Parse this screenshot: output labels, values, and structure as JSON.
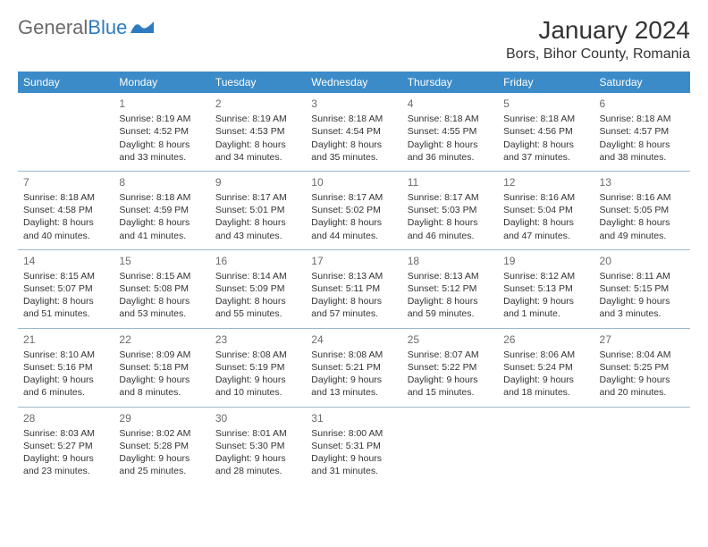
{
  "brand": {
    "name_part1": "General",
    "name_part2": "Blue",
    "color_gray": "#6b6b6b",
    "color_blue": "#2d7cc1"
  },
  "header": {
    "title": "January 2024",
    "location": "Bors, Bihor County, Romania"
  },
  "styling": {
    "header_bg": "#3b8bc9",
    "header_text": "#ffffff",
    "row_border": "#9cb8cc",
    "body_text": "#333333",
    "daynum_color": "#6b6b6b",
    "font_family": "Arial",
    "body_fontsize": 10.5,
    "header_fontsize": 12,
    "title_fontsize": 28,
    "location_fontsize": 16
  },
  "weekdays": [
    "Sunday",
    "Monday",
    "Tuesday",
    "Wednesday",
    "Thursday",
    "Friday",
    "Saturday"
  ],
  "start_offset": 1,
  "days": [
    {
      "n": 1,
      "sunrise": "8:19 AM",
      "sunset": "4:52 PM",
      "daylight": "8 hours and 33 minutes."
    },
    {
      "n": 2,
      "sunrise": "8:19 AM",
      "sunset": "4:53 PM",
      "daylight": "8 hours and 34 minutes."
    },
    {
      "n": 3,
      "sunrise": "8:18 AM",
      "sunset": "4:54 PM",
      "daylight": "8 hours and 35 minutes."
    },
    {
      "n": 4,
      "sunrise": "8:18 AM",
      "sunset": "4:55 PM",
      "daylight": "8 hours and 36 minutes."
    },
    {
      "n": 5,
      "sunrise": "8:18 AM",
      "sunset": "4:56 PM",
      "daylight": "8 hours and 37 minutes."
    },
    {
      "n": 6,
      "sunrise": "8:18 AM",
      "sunset": "4:57 PM",
      "daylight": "8 hours and 38 minutes."
    },
    {
      "n": 7,
      "sunrise": "8:18 AM",
      "sunset": "4:58 PM",
      "daylight": "8 hours and 40 minutes."
    },
    {
      "n": 8,
      "sunrise": "8:18 AM",
      "sunset": "4:59 PM",
      "daylight": "8 hours and 41 minutes."
    },
    {
      "n": 9,
      "sunrise": "8:17 AM",
      "sunset": "5:01 PM",
      "daylight": "8 hours and 43 minutes."
    },
    {
      "n": 10,
      "sunrise": "8:17 AM",
      "sunset": "5:02 PM",
      "daylight": "8 hours and 44 minutes."
    },
    {
      "n": 11,
      "sunrise": "8:17 AM",
      "sunset": "5:03 PM",
      "daylight": "8 hours and 46 minutes."
    },
    {
      "n": 12,
      "sunrise": "8:16 AM",
      "sunset": "5:04 PM",
      "daylight": "8 hours and 47 minutes."
    },
    {
      "n": 13,
      "sunrise": "8:16 AM",
      "sunset": "5:05 PM",
      "daylight": "8 hours and 49 minutes."
    },
    {
      "n": 14,
      "sunrise": "8:15 AM",
      "sunset": "5:07 PM",
      "daylight": "8 hours and 51 minutes."
    },
    {
      "n": 15,
      "sunrise": "8:15 AM",
      "sunset": "5:08 PM",
      "daylight": "8 hours and 53 minutes."
    },
    {
      "n": 16,
      "sunrise": "8:14 AM",
      "sunset": "5:09 PM",
      "daylight": "8 hours and 55 minutes."
    },
    {
      "n": 17,
      "sunrise": "8:13 AM",
      "sunset": "5:11 PM",
      "daylight": "8 hours and 57 minutes."
    },
    {
      "n": 18,
      "sunrise": "8:13 AM",
      "sunset": "5:12 PM",
      "daylight": "8 hours and 59 minutes."
    },
    {
      "n": 19,
      "sunrise": "8:12 AM",
      "sunset": "5:13 PM",
      "daylight": "9 hours and 1 minute."
    },
    {
      "n": 20,
      "sunrise": "8:11 AM",
      "sunset": "5:15 PM",
      "daylight": "9 hours and 3 minutes."
    },
    {
      "n": 21,
      "sunrise": "8:10 AM",
      "sunset": "5:16 PM",
      "daylight": "9 hours and 6 minutes."
    },
    {
      "n": 22,
      "sunrise": "8:09 AM",
      "sunset": "5:18 PM",
      "daylight": "9 hours and 8 minutes."
    },
    {
      "n": 23,
      "sunrise": "8:08 AM",
      "sunset": "5:19 PM",
      "daylight": "9 hours and 10 minutes."
    },
    {
      "n": 24,
      "sunrise": "8:08 AM",
      "sunset": "5:21 PM",
      "daylight": "9 hours and 13 minutes."
    },
    {
      "n": 25,
      "sunrise": "8:07 AM",
      "sunset": "5:22 PM",
      "daylight": "9 hours and 15 minutes."
    },
    {
      "n": 26,
      "sunrise": "8:06 AM",
      "sunset": "5:24 PM",
      "daylight": "9 hours and 18 minutes."
    },
    {
      "n": 27,
      "sunrise": "8:04 AM",
      "sunset": "5:25 PM",
      "daylight": "9 hours and 20 minutes."
    },
    {
      "n": 28,
      "sunrise": "8:03 AM",
      "sunset": "5:27 PM",
      "daylight": "9 hours and 23 minutes."
    },
    {
      "n": 29,
      "sunrise": "8:02 AM",
      "sunset": "5:28 PM",
      "daylight": "9 hours and 25 minutes."
    },
    {
      "n": 30,
      "sunrise": "8:01 AM",
      "sunset": "5:30 PM",
      "daylight": "9 hours and 28 minutes."
    },
    {
      "n": 31,
      "sunrise": "8:00 AM",
      "sunset": "5:31 PM",
      "daylight": "9 hours and 31 minutes."
    }
  ],
  "labels": {
    "sunrise": "Sunrise:",
    "sunset": "Sunset:",
    "daylight": "Daylight:"
  }
}
